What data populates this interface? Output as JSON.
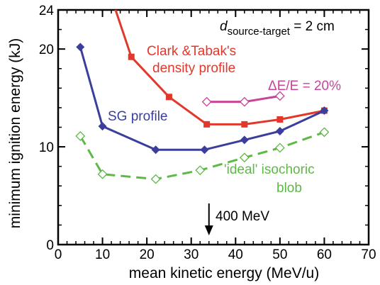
{
  "chart_data": {
    "type": "line",
    "xlabel": "mean kinetic energy  (MeV/u)",
    "ylabel": "minimum ignition energy (kJ)",
    "xlim": [
      0,
      70
    ],
    "ylim": [
      0,
      24
    ],
    "x_ticks": [
      0,
      10,
      20,
      30,
      40,
      50,
      60,
      70
    ],
    "y_ticks": [
      0,
      10,
      20,
      24
    ],
    "x_minor_step": 2,
    "y_minor_step": 2,
    "grid": false,
    "series": [
      {
        "name": "Clark &Tabak's density profile",
        "color": "#e2382b",
        "marker": "filled-square",
        "dashed": false,
        "x": [
          12.5,
          16.5,
          25,
          33.5,
          42,
          50,
          60
        ],
        "y": [
          24.6,
          19.2,
          15.1,
          12.3,
          12.3,
          12.8,
          13.7
        ]
      },
      {
        "name": "SG profile",
        "color": "#3b3f9b",
        "marker": "filled-diamond",
        "dashed": false,
        "x": [
          5,
          10,
          22,
          33,
          42,
          50,
          60
        ],
        "y": [
          20.2,
          12.1,
          9.7,
          9.7,
          10.7,
          11.6,
          13.7
        ]
      },
      {
        "name": "ΔE/E = 20%",
        "color": "#c8449b",
        "marker": "open-diamond",
        "dashed": false,
        "x": [
          33.5,
          42,
          50
        ],
        "y": [
          14.6,
          14.6,
          15.2
        ]
      },
      {
        "name": "'ideal' isochoric blob",
        "color": "#5cba44",
        "marker": "open-diamond",
        "dashed": true,
        "x": [
          5,
          10,
          22,
          32,
          42,
          50,
          60
        ],
        "y": [
          11.1,
          7.2,
          6.7,
          7.6,
          8.9,
          9.9,
          11.5
        ]
      }
    ],
    "annotations": {
      "d_main": "d",
      "d_sub": "source-target",
      "d_rest": " = 2 cm",
      "clark_line1": "Clark &Tabak's",
      "clark_line2": "density profile",
      "de": "ΔE/E = 20%",
      "sg": "SG profile",
      "ideal_line1": "'ideal' isochoric",
      "ideal_line2": "blob",
      "arrow_label": "400 MeV",
      "arrow_x": 34
    }
  }
}
